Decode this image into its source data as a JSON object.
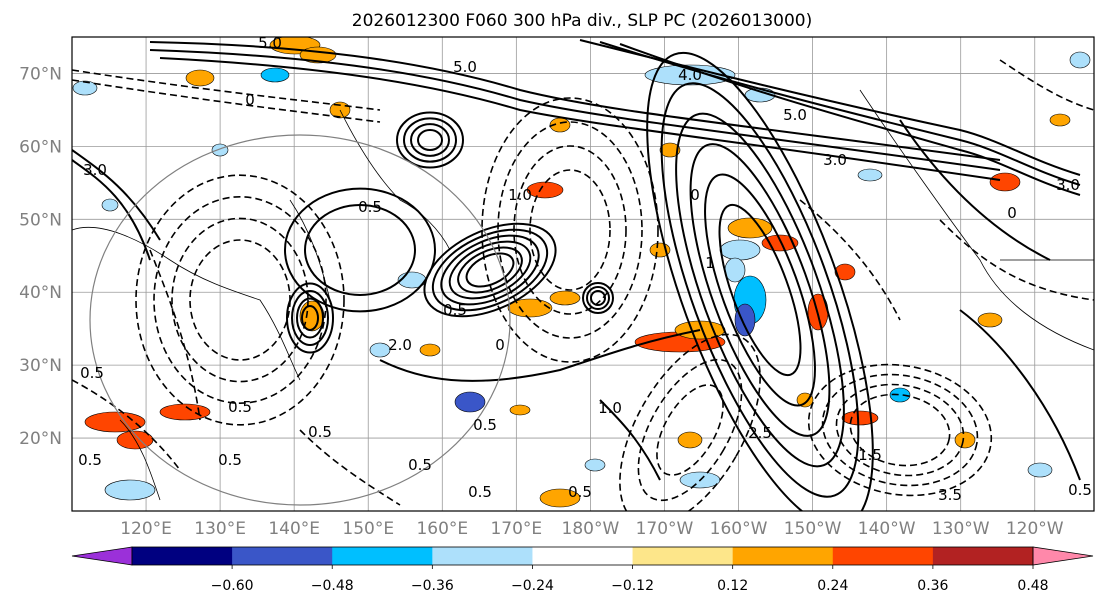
{
  "chart_data": {
    "type": "heatmap",
    "title": "2026012300 F060 300 hPa div., SLP PC (2026013000)",
    "xlabel": "",
    "ylabel": "",
    "projection": "longitude-latitude map",
    "lon_ticks": [
      "120°E",
      "130°E",
      "140°E",
      "150°E",
      "160°E",
      "170°E",
      "180°W",
      "170°W",
      "160°W",
      "150°W",
      "140°W",
      "130°W",
      "120°W"
    ],
    "lat_ticks": [
      "70°N",
      "60°N",
      "50°N",
      "40°N",
      "30°N",
      "20°N"
    ],
    "lat_range": [
      10,
      75
    ],
    "lon_range": [
      110,
      248
    ],
    "grid": true,
    "colorbar": {
      "orientation": "horizontal",
      "location": "bottom",
      "extend": "both",
      "levels": [
        -0.6,
        -0.48,
        -0.36,
        -0.24,
        -0.12,
        0.12,
        0.24,
        0.36,
        0.48,
        0.6
      ],
      "tick_labels": [
        "−0.60",
        "−0.48",
        "−0.36",
        "−0.24",
        "−0.12",
        "0.12",
        "0.24",
        "0.36",
        "0.48",
        "0.60"
      ],
      "colors": [
        "#9b30d9",
        "#000080",
        "#3a56c8",
        "#00bfff",
        "#ade0fb",
        "#ffffff",
        "#fde68a",
        "#ffa500",
        "#ff4500",
        "#b22222",
        "#ff88aa"
      ]
    },
    "contour_labels": [
      "5.0",
      "5.0",
      "4.0",
      "5.0",
      "3.0",
      "3.0",
      "3.0",
      "2.0",
      "1.0",
      "1.0",
      "0.5",
      "0.5",
      "0.5",
      "0.5",
      "0.5",
      "0.5",
      "0.5",
      "0.5",
      "0.5",
      "0.5",
      "0.5",
      "0.5",
      "0",
      "0",
      "0",
      "0",
      "1.5",
      "2.5",
      "3.5",
      "1"
    ]
  }
}
